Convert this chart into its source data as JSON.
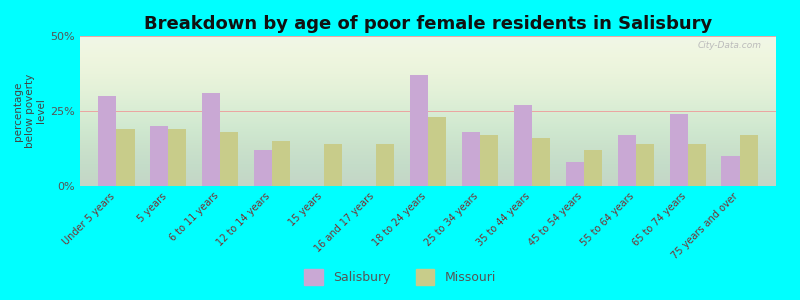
{
  "title": "Breakdown by age of poor female residents in Salisbury",
  "ylabel": "percentage\nbelow poverty\nlevel",
  "categories": [
    "Under 5 years",
    "5 years",
    "6 to 11 years",
    "12 to 14 years",
    "15 years",
    "16 and 17 years",
    "18 to 24 years",
    "25 to 34 years",
    "35 to 44 years",
    "45 to 54 years",
    "55 to 64 years",
    "65 to 74 years",
    "75 years and over"
  ],
  "salisbury_values": [
    30,
    20,
    31,
    12,
    0,
    0,
    37,
    18,
    27,
    8,
    17,
    24,
    10
  ],
  "missouri_values": [
    19,
    19,
    18,
    15,
    14,
    14,
    23,
    17,
    16,
    12,
    14,
    14,
    17
  ],
  "salisbury_color": "#c9a8d4",
  "missouri_color": "#c8cc8a",
  "background_color": "#00ffff",
  "ylim": [
    0,
    50
  ],
  "ytick_labels": [
    "0%",
    "25%",
    "50%"
  ],
  "bar_width": 0.35,
  "title_fontsize": 13,
  "label_fontsize": 7,
  "ylabel_fontsize": 7.5,
  "legend_labels": [
    "Salisbury",
    "Missouri"
  ]
}
